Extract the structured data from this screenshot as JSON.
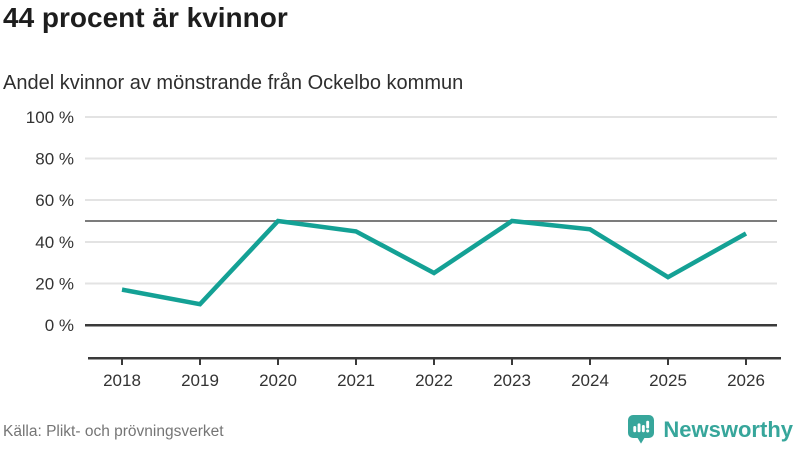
{
  "chart_data": {
    "type": "line",
    "title": "44 procent är kvinnor",
    "subtitle": "Andel kvinnor av mönstrande från Ockelbo kommun",
    "x": [
      2018,
      2019,
      2020,
      2021,
      2022,
      2023,
      2024,
      2025,
      2026
    ],
    "series": [
      {
        "name": "Andel kvinnor av mönstrande",
        "values": [
          17,
          10,
          50,
          45,
          25,
          50,
          46,
          23,
          44
        ],
        "color": "#14a195"
      }
    ],
    "ylim": [
      0,
      100
    ],
    "yticks": [
      0,
      20,
      40,
      60,
      80,
      100
    ],
    "ytick_suffix": " %",
    "xtick_labels": [
      "2018",
      "2019",
      "2020",
      "2021",
      "2022",
      "2023",
      "2024",
      "2025",
      "2026"
    ],
    "reference_line": {
      "value": 50
    },
    "grid": true,
    "legend_position": "none"
  },
  "footer": {
    "source": "Källa: Plikt- och prövningsverket",
    "brand": "Newsworthy"
  },
  "colors": {
    "line": "#14a195",
    "grid": "#e3e3e3",
    "axis": "#3a3a3a",
    "reference": "#7c7c7c",
    "tick_text": "#333333",
    "source_text": "#757575",
    "brand": "#37a69b"
  }
}
